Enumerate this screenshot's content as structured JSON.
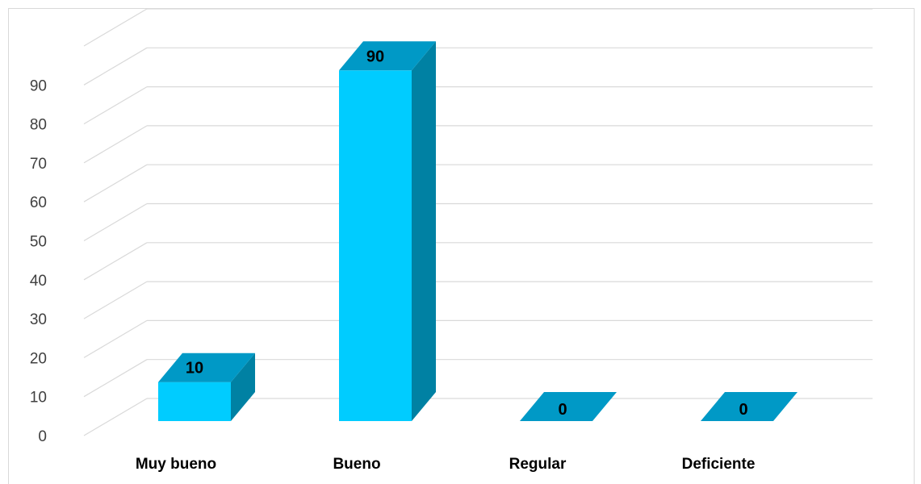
{
  "chart_data": {
    "type": "bar",
    "style": "3d-column",
    "title": "",
    "xlabel": "",
    "ylabel": "",
    "categories": [
      "Muy bueno",
      "Bueno",
      "Regular",
      "Deficiente"
    ],
    "values": [
      10,
      90,
      0,
      0
    ],
    "data_labels": [
      "10",
      "90",
      "0",
      "0"
    ],
    "ylim": [
      0,
      100
    ],
    "y_ticks": [
      0,
      10,
      20,
      30,
      40,
      50,
      60,
      70,
      80,
      90
    ],
    "grid": true,
    "legend": "none",
    "colors": {
      "bar_front": "#00CCFF",
      "bar_side": "#0081A3",
      "bar_top": "#0099C6",
      "gridline": "#D9D9D9",
      "tick_text": "#404040"
    }
  }
}
